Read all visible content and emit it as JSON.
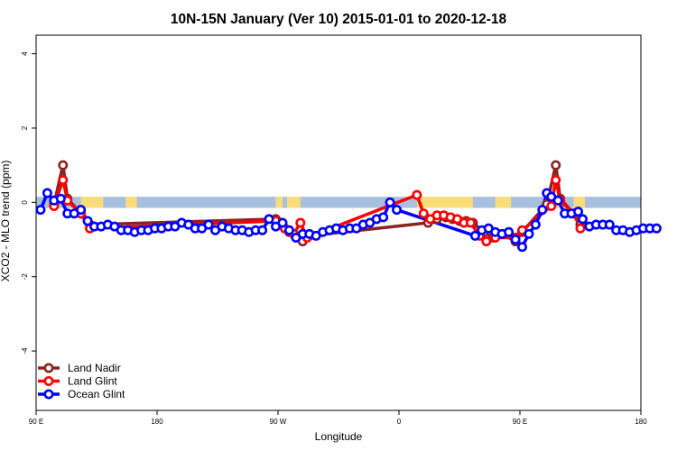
{
  "chart_data": {
    "type": "line",
    "title": "10N-15N January (Ver 10)   2015-01-01 to 2020-12-18",
    "xlabel": "Longitude",
    "ylabel": "XCO2 - MLO trend (ppm)",
    "xlim": [
      -90,
      180
    ],
    "ylim": [
      -5.6,
      4.5
    ],
    "x_ticks": [
      {
        "value": -90,
        "label": "90 E"
      },
      {
        "value": -36,
        "label": "180"
      },
      {
        "value": 18,
        "label": "90 W"
      },
      {
        "value": 72,
        "label": "0"
      },
      {
        "value": 126,
        "label": "90 E"
      },
      {
        "value": 180,
        "label": "180"
      }
    ],
    "y_ticks": [
      {
        "value": -4,
        "label": "-4"
      },
      {
        "value": -2,
        "label": "-2"
      },
      {
        "value": 0,
        "label": "0"
      },
      {
        "value": 2,
        "label": "2"
      },
      {
        "value": 4,
        "label": "4"
      }
    ],
    "band": {
      "y0": -0.15,
      "y1": 0.15,
      "color": "#a8c0e0",
      "land_color": "#fadc78"
    },
    "land_segments": [
      [
        -70,
        -60
      ],
      [
        -50,
        -45
      ],
      [
        17,
        20
      ],
      [
        22,
        28
      ],
      [
        80,
        105
      ],
      [
        115,
        122
      ],
      [
        138,
        145
      ],
      [
        150,
        155
      ]
    ],
    "series": [
      {
        "name": "Land Nadir",
        "color": "#8b2323",
        "points": [
          [
            -82,
            -0.05
          ],
          [
            -78,
            1.0
          ],
          [
            -76,
            0.1
          ],
          [
            -70,
            -0.3
          ],
          [
            -66,
            -0.6
          ],
          [
            17,
            -0.45
          ],
          [
            23,
            -0.8
          ],
          [
            26,
            -0.9
          ],
          [
            29,
            -1.05
          ],
          [
            32,
            -0.9
          ],
          [
            85,
            -0.55
          ],
          [
            89,
            -0.45
          ],
          [
            93,
            -0.4
          ],
          [
            96,
            -0.45
          ],
          [
            99,
            -0.5
          ],
          [
            102,
            -0.5
          ],
          [
            105,
            -0.55
          ],
          [
            110,
            -0.8
          ],
          [
            114,
            -0.95
          ],
          [
            118,
            -0.85
          ],
          [
            124,
            -1.05
          ],
          [
            127,
            -0.8
          ],
          [
            138,
            -0.05
          ],
          [
            142,
            1.0
          ],
          [
            144,
            0.1
          ],
          [
            150,
            -0.3
          ],
          [
            153,
            -0.6
          ]
        ]
      },
      {
        "name": "Land Glint",
        "color": "#ff0000",
        "points": [
          [
            -82,
            -0.1
          ],
          [
            -78,
            0.6
          ],
          [
            -76,
            0.05
          ],
          [
            -70,
            -0.3
          ],
          [
            -66,
            -0.7
          ],
          [
            17,
            -0.5
          ],
          [
            21,
            -0.7
          ],
          [
            25,
            -0.85
          ],
          [
            28,
            -0.55
          ],
          [
            31,
            -0.95
          ],
          [
            80,
            0.2
          ],
          [
            83,
            -0.3
          ],
          [
            86,
            -0.45
          ],
          [
            89,
            -0.35
          ],
          [
            92,
            -0.35
          ],
          [
            95,
            -0.4
          ],
          [
            98,
            -0.45
          ],
          [
            101,
            -0.55
          ],
          [
            104,
            -0.55
          ],
          [
            108,
            -0.9
          ],
          [
            111,
            -1.05
          ],
          [
            115,
            -0.95
          ],
          [
            124,
            -0.95
          ],
          [
            127,
            -0.75
          ],
          [
            140,
            -0.1
          ],
          [
            142,
            0.6
          ],
          [
            144,
            0.05
          ],
          [
            150,
            -0.3
          ],
          [
            153,
            -0.7
          ]
        ]
      },
      {
        "name": "Ocean Glint",
        "color": "#0000ff",
        "points": [
          [
            -88,
            -0.2
          ],
          [
            -85,
            0.25
          ],
          [
            -82,
            0.05
          ],
          [
            -79,
            0.1
          ],
          [
            -76,
            -0.3
          ],
          [
            -73,
            -0.3
          ],
          [
            -70,
            -0.2
          ],
          [
            -67,
            -0.5
          ],
          [
            -64,
            -0.65
          ],
          [
            -61,
            -0.65
          ],
          [
            -58,
            -0.6
          ],
          [
            -55,
            -0.65
          ],
          [
            -52,
            -0.75
          ],
          [
            -49,
            -0.75
          ],
          [
            -46,
            -0.8
          ],
          [
            -43,
            -0.75
          ],
          [
            -40,
            -0.75
          ],
          [
            -37,
            -0.7
          ],
          [
            -34,
            -0.7
          ],
          [
            -31,
            -0.65
          ],
          [
            -28,
            -0.65
          ],
          [
            -25,
            -0.55
          ],
          [
            -22,
            -0.6
          ],
          [
            -19,
            -0.7
          ],
          [
            -16,
            -0.7
          ],
          [
            -13,
            -0.6
          ],
          [
            -10,
            -0.75
          ],
          [
            -7,
            -0.65
          ],
          [
            -4,
            -0.7
          ],
          [
            -1,
            -0.75
          ],
          [
            2,
            -0.75
          ],
          [
            5,
            -0.8
          ],
          [
            8,
            -0.75
          ],
          [
            11,
            -0.75
          ],
          [
            14,
            -0.45
          ],
          [
            17,
            -0.65
          ],
          [
            20,
            -0.55
          ],
          [
            23,
            -0.75
          ],
          [
            26,
            -0.95
          ],
          [
            29,
            -0.85
          ],
          [
            32,
            -0.85
          ],
          [
            35,
            -0.9
          ],
          [
            38,
            -0.8
          ],
          [
            41,
            -0.75
          ],
          [
            44,
            -0.7
          ],
          [
            47,
            -0.75
          ],
          [
            50,
            -0.7
          ],
          [
            53,
            -0.7
          ],
          [
            56,
            -0.6
          ],
          [
            59,
            -0.55
          ],
          [
            62,
            -0.45
          ],
          [
            65,
            -0.4
          ],
          [
            68,
            0.0
          ],
          [
            71,
            -0.2
          ],
          [
            106,
            -0.9
          ],
          [
            109,
            -0.75
          ],
          [
            112,
            -0.7
          ],
          [
            115,
            -0.8
          ],
          [
            118,
            -0.85
          ],
          [
            121,
            -0.8
          ],
          [
            124,
            -1.0
          ],
          [
            127,
            -1.2
          ],
          [
            130,
            -0.85
          ],
          [
            133,
            -0.6
          ],
          [
            136,
            -0.2
          ],
          [
            138,
            0.25
          ],
          [
            140,
            0.15
          ],
          [
            143,
            0.05
          ],
          [
            146,
            -0.3
          ],
          [
            149,
            -0.3
          ],
          [
            152,
            -0.25
          ],
          [
            154,
            -0.45
          ],
          [
            157,
            -0.65
          ],
          [
            160,
            -0.6
          ],
          [
            163,
            -0.6
          ],
          [
            166,
            -0.6
          ],
          [
            169,
            -0.75
          ],
          [
            172,
            -0.75
          ],
          [
            175,
            -0.8
          ],
          [
            178,
            -0.75
          ],
          [
            181,
            -0.7
          ],
          [
            184,
            -0.7
          ],
          [
            187,
            -0.7
          ]
        ]
      }
    ],
    "legend": {
      "position": "bottom-left"
    }
  }
}
